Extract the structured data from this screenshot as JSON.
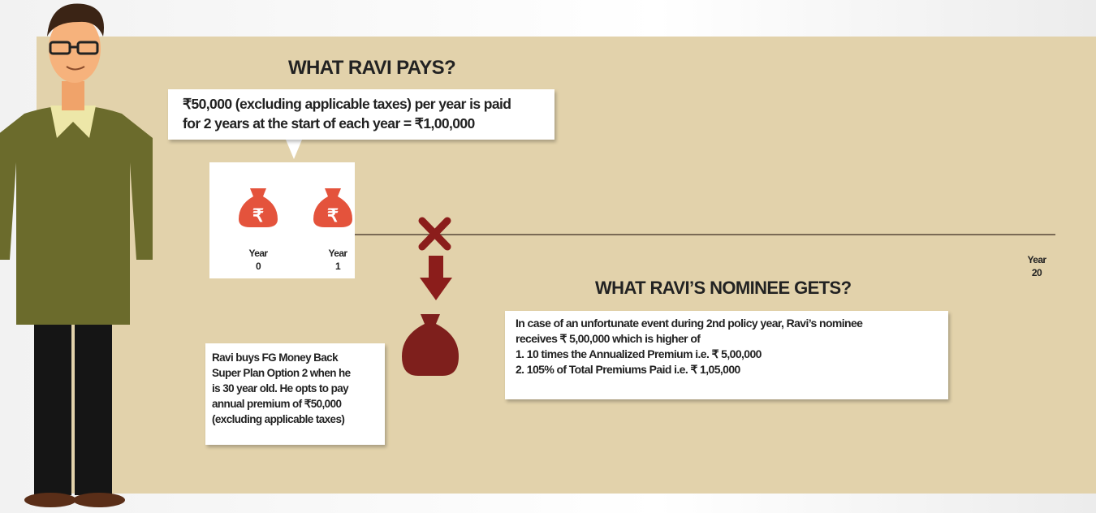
{
  "pays": {
    "title": "WHAT RAVI PAYS?",
    "lines": [
      "₹50,000 (excluding applicable taxes) per year is paid",
      "for 2 years at the start of each year  =  ₹1,00,000"
    ]
  },
  "timeline": {
    "years": [
      {
        "label": "Year",
        "number": "0"
      },
      {
        "label": "Year",
        "number": "1"
      },
      {
        "label": "Year",
        "number": "20"
      }
    ]
  },
  "nominee": {
    "title": "WHAT RAVI’S NOMINEE GETS?",
    "lines": [
      "In case of an unfortunate event during 2nd policy year, Ravi’s nominee",
      "receives ₹ 5,00,000 which is higher of",
      "1.  10 times the Annualized Premium i.e. ₹ 5,00,000",
      "2.  105% of Total Premiums Paid i.e. ₹ 1,05,000"
    ]
  },
  "ravi": {
    "lines": [
      "Ravi buys FG Money Back",
      "Super Plan Option 2 when he",
      "is 30 year old. He opts to pay",
      "annual premium of ₹50,000",
      "(excluding applicable taxes)"
    ]
  }
}
